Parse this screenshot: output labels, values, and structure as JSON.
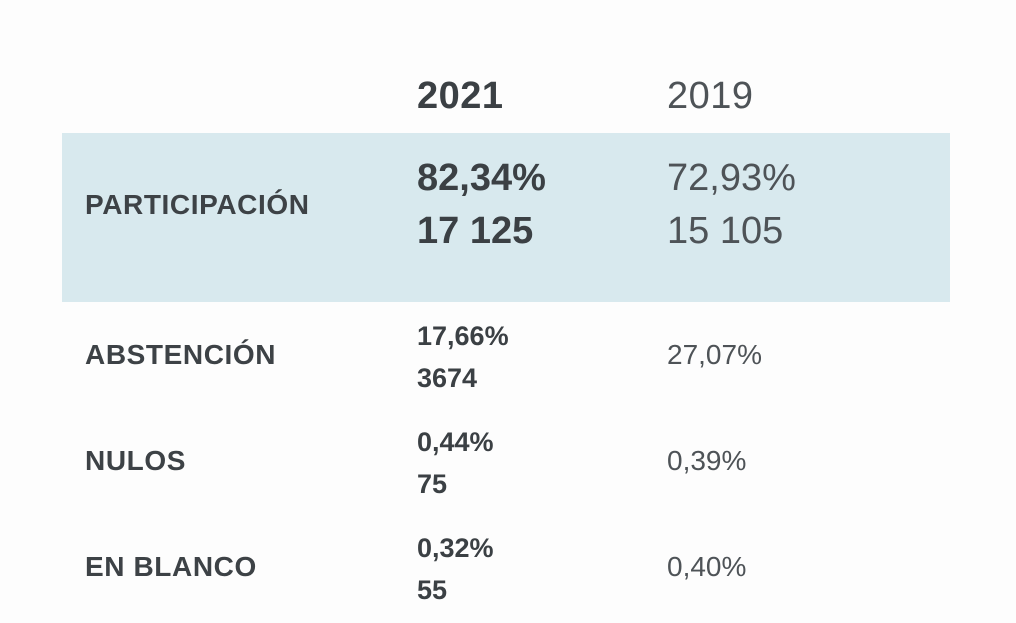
{
  "colors": {
    "highlight_row_bg": "#d8e9ee",
    "text_bold": "#3b4044",
    "text_label": "#3d4246",
    "text_regular": "#4e5357",
    "page_bg": "#fdfdfd"
  },
  "table": {
    "header": {
      "col_2021": "2021",
      "col_2019": "2019"
    },
    "rows": [
      {
        "label": "PARTICIPACIÓN",
        "y2021_pct": "82,34%",
        "y2021_count": "17 125",
        "y2019_pct": "72,93%",
        "y2019_count": "15 105"
      },
      {
        "label": "ABSTENCIÓN",
        "y2021_pct": "17,66%",
        "y2021_count": "3674",
        "y2019_pct": "27,07%"
      },
      {
        "label": "NULOS",
        "y2021_pct": "0,44%",
        "y2021_count": "75",
        "y2019_pct": "0,39%"
      },
      {
        "label": "EN BLANCO",
        "y2021_pct": "0,32%",
        "y2021_count": "55",
        "y2019_pct": "0,40%"
      }
    ]
  },
  "chart_data": {
    "type": "table",
    "title": "",
    "columns": [
      "",
      "2021",
      "2019"
    ],
    "rows": [
      {
        "label": "PARTICIPACIÓN",
        "2021": {
          "percent": 82.34,
          "count": 17125,
          "percent_display": "82,34%",
          "count_display": "17 125"
        },
        "2019": {
          "percent": 72.93,
          "count": 15105,
          "percent_display": "72,93%",
          "count_display": "15 105"
        }
      },
      {
        "label": "ABSTENCIÓN",
        "2021": {
          "percent": 17.66,
          "count": 3674,
          "percent_display": "17,66%",
          "count_display": "3674"
        },
        "2019": {
          "percent": 27.07,
          "percent_display": "27,07%"
        }
      },
      {
        "label": "NULOS",
        "2021": {
          "percent": 0.44,
          "count": 75,
          "percent_display": "0,44%",
          "count_display": "75"
        },
        "2019": {
          "percent": 0.39,
          "percent_display": "0,39%"
        }
      },
      {
        "label": "EN BLANCO",
        "2021": {
          "percent": 0.32,
          "count": 55,
          "percent_display": "0,32%",
          "count_display": "55"
        },
        "2019": {
          "percent": 0.4,
          "percent_display": "0,40%"
        }
      }
    ],
    "layout": {
      "highlighted_row": "PARTICIPACIÓN",
      "legend_position": "none",
      "grid": false
    }
  }
}
